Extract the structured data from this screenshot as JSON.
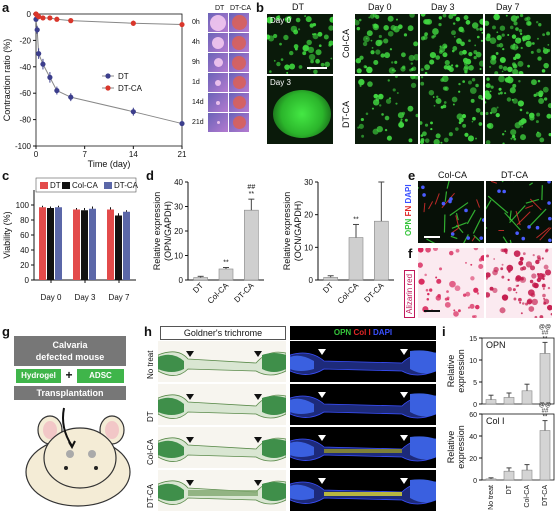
{
  "panels": {
    "a": {
      "label": "a",
      "chart": {
        "type": "line",
        "xlabel": "Time (day)",
        "ylabel": "Contraction ratio (%)",
        "xticks": [
          "0",
          "7",
          "14",
          "21"
        ],
        "yticks": [
          "0",
          "-20",
          "-40",
          "-60",
          "-80",
          "-100"
        ],
        "xlim": [
          0,
          21
        ],
        "ylim": [
          -100,
          0
        ],
        "series": [
          {
            "name": "DT",
            "color": "#3c3e8c",
            "x": [
              0,
              0.17,
              0.38,
              1,
              2,
              3,
              5,
              14,
              21
            ],
            "y": [
              -4,
              -12,
              -30,
              -38,
              -48,
              -58,
              -63,
              -74,
              -83
            ],
            "err": [
              2,
              3,
              4,
              4,
              4,
              3,
              3,
              3,
              2
            ]
          },
          {
            "name": "DT-CA",
            "color": "#d9362b",
            "x": [
              0,
              0.17,
              0.38,
              1,
              2,
              3,
              5,
              14,
              21
            ],
            "y": [
              0,
              -1,
              -2,
              -3,
              -3,
              -4,
              -5,
              -7,
              -8
            ],
            "err": [
              1,
              1,
              1,
              1,
              1,
              1,
              1,
              2,
              2
            ]
          }
        ]
      },
      "inset": {
        "cols": [
          "DT",
          "DT-CA"
        ],
        "rows": [
          "0h",
          "4h",
          "9h",
          "1d",
          "14d",
          "21d"
        ]
      }
    },
    "b": {
      "label": "b",
      "left_col": "DT",
      "left_tiles": [
        "Day 0",
        "Day 3"
      ],
      "cols": [
        "Day 0",
        "Day 3",
        "Day 7"
      ],
      "rows": [
        "Col-CA",
        "DT-CA"
      ]
    },
    "c": {
      "label": "c",
      "chart": {
        "type": "bar",
        "ylabel": "Viability (%)",
        "categories": [
          "Day 0",
          "Day 3",
          "Day 7"
        ],
        "yticks": [
          "0",
          "20",
          "40",
          "60",
          "80",
          "100"
        ],
        "ylim": [
          0,
          120
        ],
        "series": [
          {
            "name": "DT",
            "color": "#e34b4b",
            "values": [
              97,
              94,
              94
            ],
            "err": [
              2,
              2,
              3
            ]
          },
          {
            "name": "Col-CA",
            "color": "#111111",
            "values": [
              96,
              93,
              86
            ],
            "err": [
              2,
              3,
              3
            ]
          },
          {
            "name": "DT-CA",
            "color": "#5b67a8",
            "values": [
              97,
              95,
              91
            ],
            "err": [
              2,
              3,
              2
            ]
          }
        ]
      }
    },
    "d": {
      "label": "d",
      "charts": [
        {
          "type": "bar",
          "ylabel": "Relative expression (OPN/GAPDH)",
          "categories": [
            "DT",
            "Col-CA",
            "DT-CA"
          ],
          "yticks": [
            "0",
            "10",
            "20",
            "30",
            "40"
          ],
          "ylim": [
            0,
            40
          ],
          "values": [
            1,
            4.5,
            28.5
          ],
          "err": [
            0.5,
            0.6,
            4.5
          ],
          "annotations": [
            "",
            "**",
            "##\n**"
          ]
        },
        {
          "type": "bar",
          "ylabel": "Relative expression (OCN/GAPDH)",
          "categories": [
            "DT",
            "Col-CA",
            "DT-CA"
          ],
          "yticks": [
            "0",
            "10",
            "20",
            "30"
          ],
          "ylim": [
            0,
            30
          ],
          "values": [
            0.8,
            13,
            18
          ],
          "err": [
            0.5,
            4,
            12
          ],
          "annotations": [
            "",
            "**",
            ""
          ]
        }
      ]
    },
    "e": {
      "label": "e",
      "cols": [
        "Col-CA",
        "DT-CA"
      ],
      "stain": [
        {
          "text": "OPN",
          "color": "#35c43a"
        },
        {
          "text": "FN",
          "color": "#e02626"
        },
        {
          "text": "DAPI",
          "color": "#3a50ff"
        }
      ]
    },
    "f": {
      "label": "f",
      "stain": "Alizarin red"
    },
    "g": {
      "label": "g",
      "model": "Calvaria\ndefected mouse",
      "hydrogel": "Hydrogel",
      "plus": "+",
      "adsc": "ADSC",
      "transplant": "Transplantation"
    },
    "h": {
      "label": "h",
      "left_title": "Goldner's trichrome",
      "rows": [
        "No treat",
        "DT",
        "Col-CA",
        "DT-CA"
      ],
      "right_stain": [
        {
          "text": "OPN",
          "color": "#35c43a"
        },
        {
          "text": "Col I",
          "color": "#e02626"
        },
        {
          "text": "DAPI",
          "color": "#3a50ff"
        }
      ]
    },
    "i": {
      "label": "i",
      "categories": [
        "No treat",
        "DT",
        "Col-CA",
        "DT-CA"
      ],
      "charts": [
        {
          "type": "bar",
          "title": "OPN",
          "ylabel": "Relative expression",
          "yticks": [
            "0",
            "5",
            "10",
            "15"
          ],
          "ylim": [
            0,
            15
          ],
          "values": [
            1,
            1.5,
            3,
            11.5
          ],
          "err": [
            1,
            1,
            1.5,
            2.5
          ],
          "annotations": [
            "",
            "",
            "",
            "@@\n##\n**"
          ]
        },
        {
          "type": "bar",
          "title": "Col I",
          "ylabel": "Relative expression",
          "yticks": [
            "0",
            "20",
            "40",
            "60"
          ],
          "ylim": [
            0,
            60
          ],
          "values": [
            1,
            8,
            9,
            45
          ],
          "err": [
            1,
            3,
            5,
            9
          ],
          "annotations": [
            "",
            "",
            "",
            "@@\n##\n**"
          ]
        }
      ]
    }
  }
}
